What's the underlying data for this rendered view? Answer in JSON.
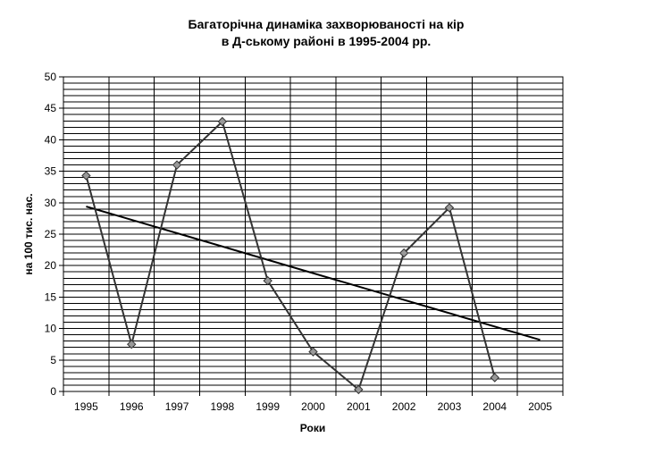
{
  "chart_data": {
    "type": "line",
    "title_lines": [
      "Багаторічна динаміка захворюваності на кір",
      "в Д-ському районі в 1995-2004 рр."
    ],
    "xlabel": "Роки",
    "ylabel": "на 100 тис. нас.",
    "categories": [
      "1995",
      "1996",
      "1997",
      "1998",
      "1999",
      "2000",
      "2001",
      "2002",
      "2003",
      "2004",
      "2005"
    ],
    "yticks": [
      "0",
      "5",
      "10",
      "15",
      "20",
      "25",
      "30",
      "35",
      "40",
      "45",
      "50"
    ],
    "ylim": [
      0,
      50
    ],
    "grid_minor_step": 1,
    "grid_major_step": 5,
    "series": [
      {
        "x": [
          "1995",
          "1996",
          "1997",
          "1998",
          "1999",
          "2000",
          "2001",
          "2002",
          "2003",
          "2004"
        ],
        "values": [
          34.3,
          7.5,
          36.0,
          42.9,
          17.6,
          6.3,
          0.3,
          22.0,
          29.2,
          2.2
        ],
        "marker": "diamond",
        "line_color": "#333333",
        "marker_color": "#999999"
      }
    ],
    "trendline": {
      "type": "linear",
      "from": {
        "x": "1995",
        "y": 29.4
      },
      "to": {
        "x": "2005",
        "y": 8.2
      },
      "color": "#000000"
    }
  }
}
